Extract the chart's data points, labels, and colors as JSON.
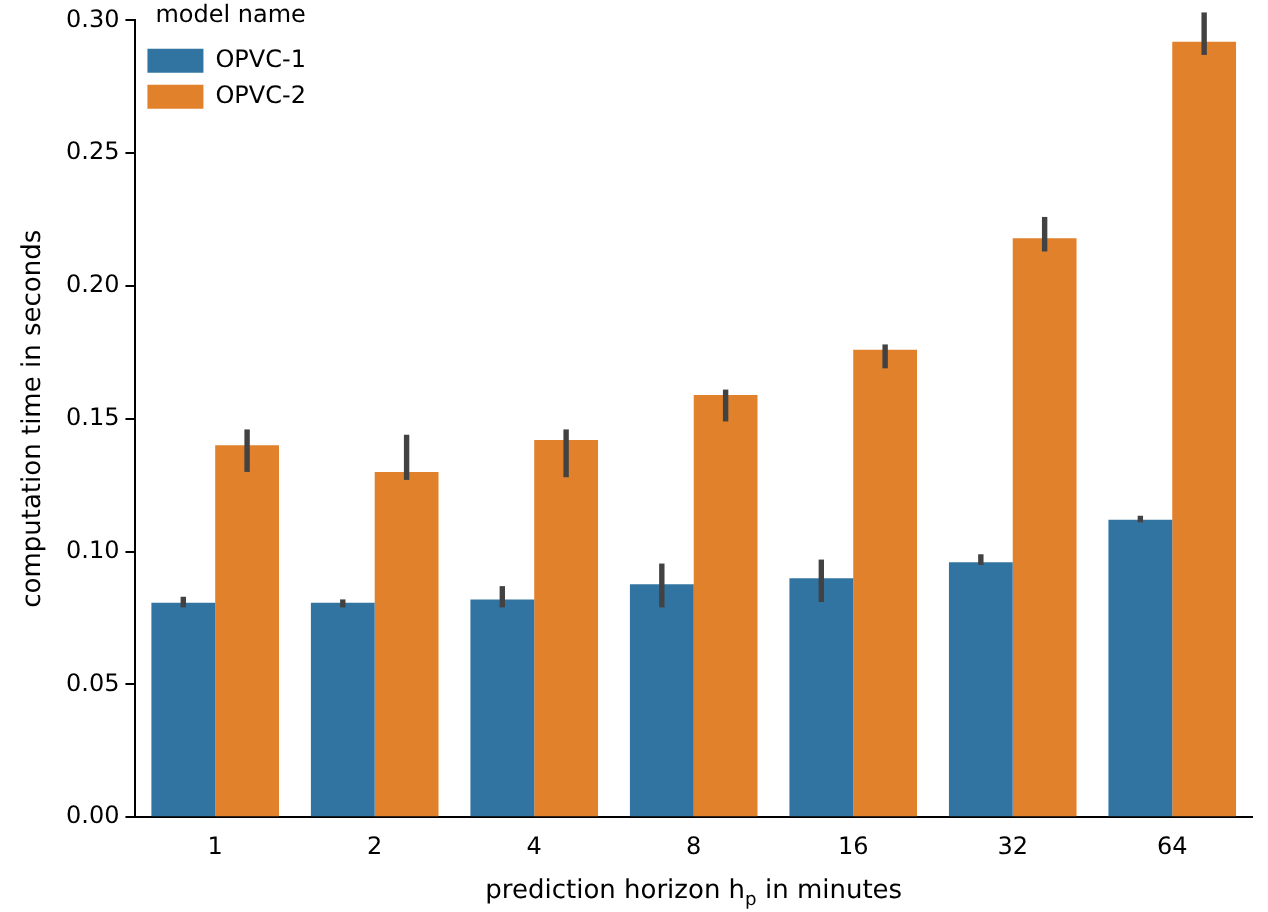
{
  "chart_data": {
    "type": "bar",
    "xlabel": "prediction horizon h$_{p}$ in minutes",
    "ylabel": "computation time in seconds",
    "legend_title": "model name",
    "legend": "top left",
    "grid": false,
    "categories": [
      "1",
      "2",
      "4",
      "8",
      "16",
      "32",
      "64"
    ],
    "ylim": [
      0,
      0.3
    ],
    "yticks": [
      {
        "value": 0,
        "label": "0.00"
      },
      0.05,
      {
        "value": 0.1,
        "label": "0.10"
      },
      0.15,
      {
        "value": 0.2,
        "label": "0.20"
      },
      0.25,
      {
        "value": 0.3,
        "label": "0.30"
      }
    ],
    "series": [
      {
        "name": "OPVC-1",
        "color": "#3274a1",
        "values": [
          0.0807,
          0.0807,
          0.082,
          0.0877,
          0.09,
          0.096,
          0.112
        ],
        "errors": [
          [
            0.079,
            0.083
          ],
          [
            0.079,
            0.082
          ],
          [
            0.079,
            0.087
          ],
          [
            0.079,
            0.0955
          ],
          [
            0.081,
            0.097
          ],
          [
            0.095,
            0.099
          ],
          [
            0.111,
            0.1135
          ]
        ]
      },
      {
        "name": "OPVC-2",
        "color": "#e1812c",
        "values": [
          0.14,
          0.13,
          0.142,
          0.159,
          0.176,
          0.218,
          0.292
        ],
        "errors": [
          [
            0.13,
            0.146
          ],
          [
            0.127,
            0.144
          ],
          [
            0.128,
            0.146
          ],
          [
            0.149,
            0.161
          ],
          [
            0.169,
            0.178
          ],
          [
            0.213,
            0.226
          ],
          [
            0.287,
            0.303
          ]
        ]
      }
    ]
  }
}
